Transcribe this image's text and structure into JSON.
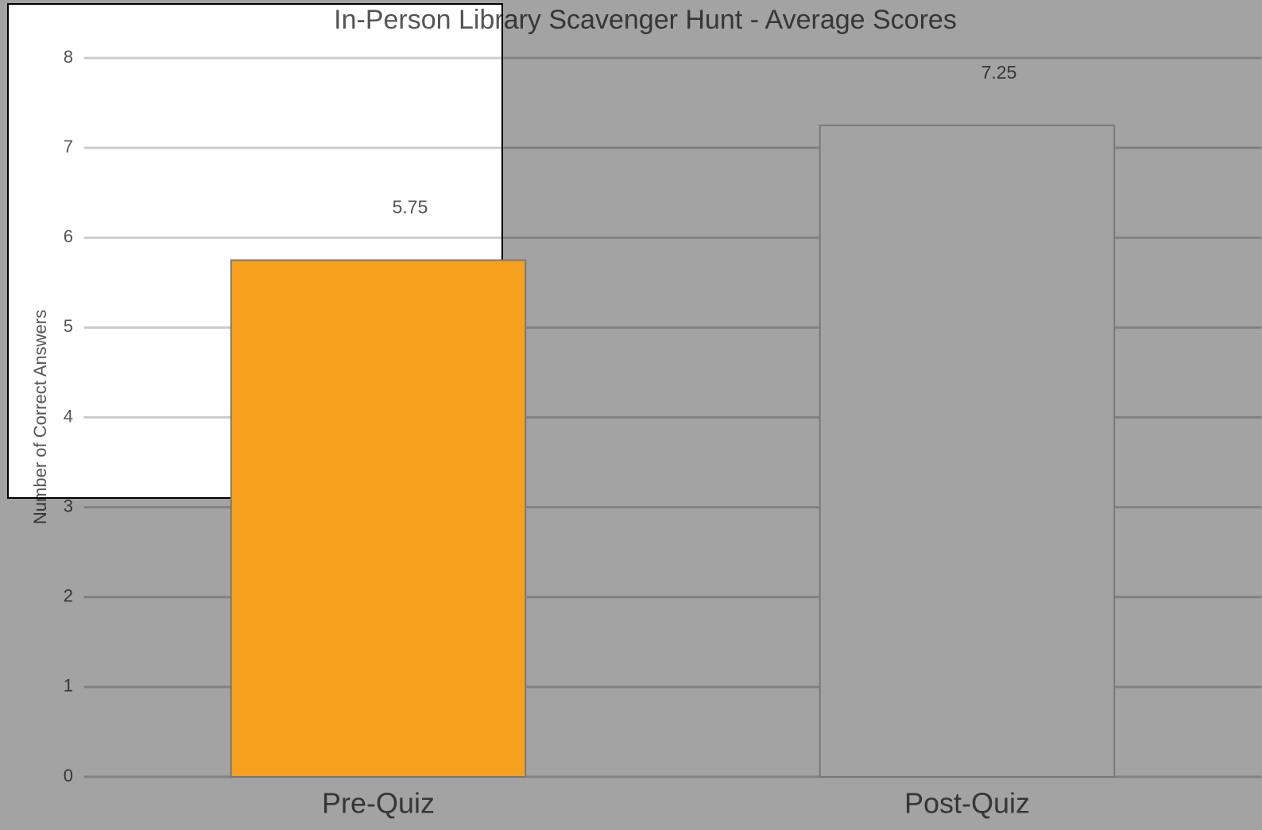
{
  "chart_data": {
    "type": "bar",
    "title": "In-Person Library Scavenger Hunt - Average Scores",
    "y_label": "Number of Correct Answers",
    "categories": [
      "Pre-Quiz",
      "Post-Quiz"
    ],
    "values": [
      5.75,
      7.25
    ],
    "colors": [
      "#f5a11f",
      "#a3a3a3"
    ],
    "ylim": [
      0,
      8
    ],
    "yticks": [
      0,
      1,
      2,
      3,
      4,
      5,
      6,
      7,
      8
    ],
    "grid": true
  }
}
